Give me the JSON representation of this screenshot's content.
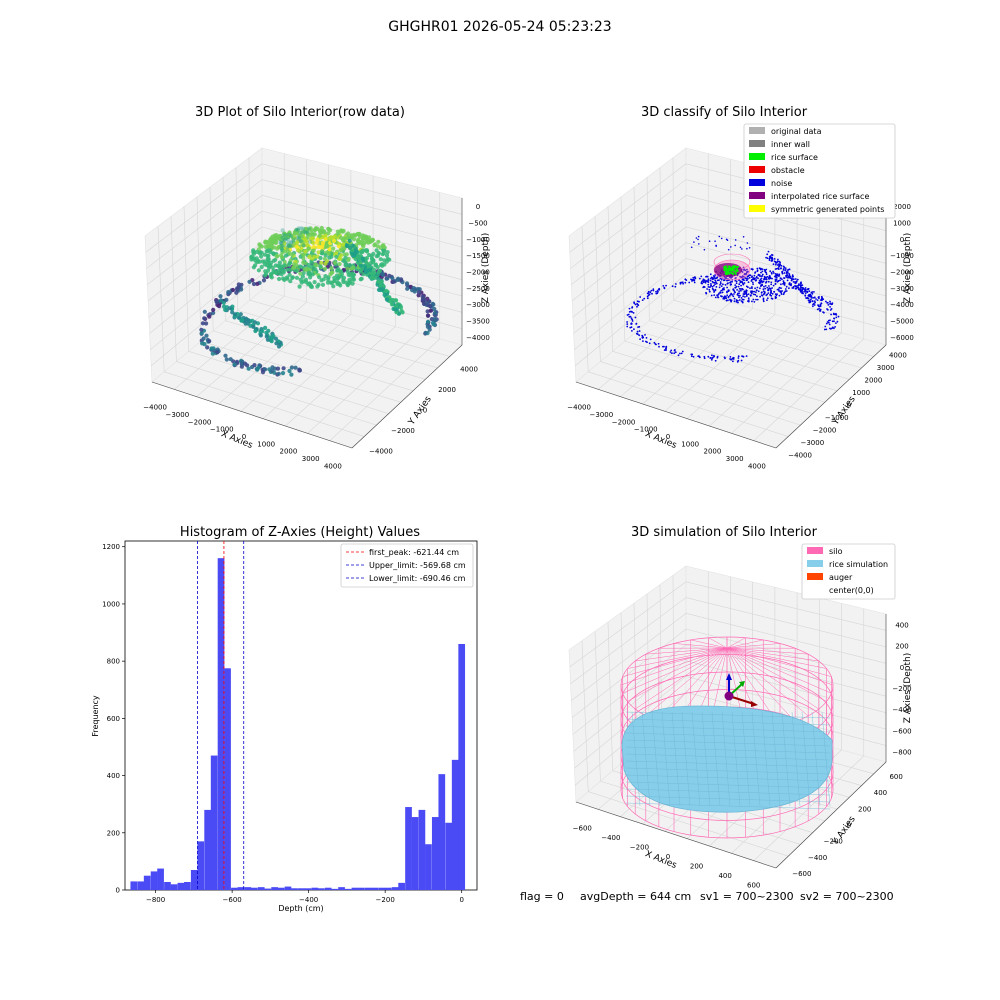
{
  "figure": {
    "suptitle": "GHGHR01 2026-05-24 05:23:23",
    "footer": {
      "flag": "flag = 0",
      "avg": "avgDepth = 644 cm",
      "sv1": "sv1 = 700~2300",
      "sv2": "sv2 = 700~2300"
    }
  },
  "chart_data": [
    {
      "type": "scatter",
      "projection": "3d",
      "title": "3D Plot of Silo Interior(row data)",
      "xlabel": "X Axies",
      "ylabel": "Y Axies",
      "zlabel": "Z Axies (Depth)",
      "xticks": [
        "−4000",
        "−3000",
        "−2000",
        "−1000",
        "0",
        "1000",
        "2000",
        "3000",
        "4000"
      ],
      "yticks": [
        "−4000",
        "−2000",
        "0",
        "2000",
        "4000"
      ],
      "zticks": [
        "0",
        "−500",
        "−1000",
        "−1500",
        "−2000",
        "−2500",
        "−3000",
        "−3500",
        "−4000"
      ],
      "xlim": [
        -4500,
        4500
      ],
      "ylim": [
        -4500,
        4500
      ],
      "zlim": [
        -4200,
        200
      ],
      "colormap": "viridis"
    },
    {
      "type": "scatter",
      "projection": "3d",
      "title": "3D classify of Silo Interior",
      "xlabel": "X Axies",
      "ylabel": "Y Axies",
      "zlabel": "Z Axies (Depth)",
      "xticks": [
        "−4000",
        "−3000",
        "−2000",
        "−1000",
        "0",
        "1000",
        "2000",
        "3000",
        "4000"
      ],
      "yticks": [
        "−4000",
        "−3000",
        "−2000",
        "−1000",
        "0",
        "1000",
        "2000",
        "3000",
        "4000"
      ],
      "zticks": [
        "2000",
        "1000",
        "0",
        "−1000",
        "−2000",
        "−3000",
        "−4000",
        "−5000",
        "−6000"
      ],
      "legend_position": "top-right",
      "legend": [
        {
          "label": "original data",
          "color": "#b0b0b0"
        },
        {
          "label": "inner wall",
          "color": "#808080"
        },
        {
          "label": "rice surface",
          "color": "#00ee00"
        },
        {
          "label": "obstacle",
          "color": "#ee0000"
        },
        {
          "label": "noise",
          "color": "#0000dd"
        },
        {
          "label": "interpolated rice surface",
          "color": "#800080"
        },
        {
          "label": "symmetric generated points",
          "color": "#ffff00"
        }
      ]
    },
    {
      "type": "bar",
      "title": "Histogram of Z-Axies (Height) Values",
      "xlabel": "Depth (cm)",
      "ylabel": "Frequency",
      "xlim": [
        -880,
        40
      ],
      "ylim": [
        0,
        1220
      ],
      "xticks": [
        -800,
        -600,
        -400,
        -200,
        0
      ],
      "yticks": [
        0,
        200,
        400,
        600,
        800,
        1000,
        1200
      ],
      "bar_color": "#4b4bf5",
      "bin_width": 17.5,
      "bins": [
        {
          "x": -857,
          "count": 30
        },
        {
          "x": -839,
          "count": 30
        },
        {
          "x": -822,
          "count": 50
        },
        {
          "x": -804,
          "count": 65
        },
        {
          "x": -787,
          "count": 75
        },
        {
          "x": -769,
          "count": 28
        },
        {
          "x": -752,
          "count": 20
        },
        {
          "x": -734,
          "count": 25
        },
        {
          "x": -717,
          "count": 28
        },
        {
          "x": -699,
          "count": 70
        },
        {
          "x": -682,
          "count": 170
        },
        {
          "x": -664,
          "count": 280
        },
        {
          "x": -647,
          "count": 470
        },
        {
          "x": -629,
          "count": 1160
        },
        {
          "x": -612,
          "count": 775
        },
        {
          "x": -594,
          "count": 8
        },
        {
          "x": -577,
          "count": 10
        },
        {
          "x": -559,
          "count": 10
        },
        {
          "x": -542,
          "count": 8
        },
        {
          "x": -524,
          "count": 10
        },
        {
          "x": -507,
          "count": 5
        },
        {
          "x": -489,
          "count": 10
        },
        {
          "x": -472,
          "count": 8
        },
        {
          "x": -454,
          "count": 12
        },
        {
          "x": -437,
          "count": 6
        },
        {
          "x": -419,
          "count": 6
        },
        {
          "x": -402,
          "count": 6
        },
        {
          "x": -384,
          "count": 8
        },
        {
          "x": -367,
          "count": 6
        },
        {
          "x": -349,
          "count": 8
        },
        {
          "x": -332,
          "count": 4
        },
        {
          "x": -314,
          "count": 10
        },
        {
          "x": -297,
          "count": 4
        },
        {
          "x": -279,
          "count": 8
        },
        {
          "x": -262,
          "count": 8
        },
        {
          "x": -244,
          "count": 8
        },
        {
          "x": -227,
          "count": 8
        },
        {
          "x": -209,
          "count": 8
        },
        {
          "x": -192,
          "count": 8
        },
        {
          "x": -174,
          "count": 10
        },
        {
          "x": -157,
          "count": 25
        },
        {
          "x": -139,
          "count": 290
        },
        {
          "x": -122,
          "count": 255
        },
        {
          "x": -104,
          "count": 280
        },
        {
          "x": -87,
          "count": 160
        },
        {
          "x": -69,
          "count": 255
        },
        {
          "x": -52,
          "count": 405
        },
        {
          "x": -34,
          "count": 235
        },
        {
          "x": -17,
          "count": 455
        },
        {
          "x": 0,
          "count": 860
        }
      ],
      "vlines": [
        {
          "label": "first_peak: -621.44 cm",
          "x": -621.44,
          "color": "#ff0000"
        },
        {
          "label": "Upper_limit: -569.68 cm",
          "x": -569.68,
          "color": "#0000cc"
        },
        {
          "label": "Lower_limit: -690.46 cm",
          "x": -690.46,
          "color": "#0000cc"
        }
      ],
      "legend_position": "top-right"
    },
    {
      "type": "scatter",
      "projection": "3d",
      "title": "3D simulation of Silo Interior",
      "xlabel": "X Axies",
      "ylabel": "Y Axies",
      "zlabel": "Z Axies (Depth)",
      "xticks": [
        "−600",
        "−400",
        "−200",
        "0",
        "200",
        "400",
        "600"
      ],
      "yticks": [
        "−600",
        "−400",
        "−200",
        "0",
        "200",
        "400",
        "600"
      ],
      "zticks": [
        "400",
        "200",
        "0",
        "−200",
        "−400",
        "−600",
        "−800"
      ],
      "legend_position": "top-right",
      "legend": [
        {
          "label": "silo",
          "color": "#ff69b4"
        },
        {
          "label": "rice simulation",
          "color": "#87ceeb"
        },
        {
          "label": "auger",
          "color": "#ff4500"
        },
        {
          "label": "center(0,0)",
          "color": ""
        }
      ]
    }
  ]
}
